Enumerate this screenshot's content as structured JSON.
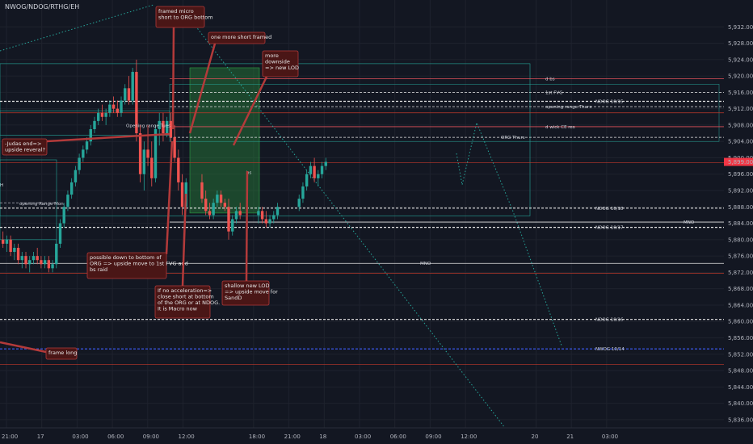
{
  "header": {
    "symbol": "NWOG/NDOG/RTHG/EH"
  },
  "chart_data": {
    "type": "candlestick",
    "title": "NWOG/NDOG/RTHG/EH",
    "y_range": [
      5834,
      5936
    ],
    "y_ticks": [
      5836,
      5840,
      5844,
      5848,
      5852,
      5856,
      5860,
      5864,
      5868,
      5872,
      5876,
      5880,
      5884,
      5888,
      5892,
      5896,
      5900,
      5904,
      5908,
      5912,
      5916,
      5920,
      5924,
      5928,
      5932
    ],
    "y_tick_labels": [
      "5,836.00",
      "5,840.00",
      "5,844.00",
      "5,848.00",
      "5,852.00",
      "5,856.00",
      "5,860.00",
      "5,864.00",
      "5,868.00",
      "5,872.00",
      "5,876.00",
      "5,880.00",
      "5,884.00",
      "5,888.00",
      "5,892.00",
      "5,896.00",
      "5,900.00",
      "5,904.00",
      "5,908.00",
      "5,912.00",
      "5,916.00",
      "5,920.00",
      "5,924.00",
      "5,928.00",
      "5,932.00"
    ],
    "x_labels": [
      "21:00",
      "17",
      "03:00",
      "06:00",
      "09:00",
      "12:00",
      "18:00",
      "21:00",
      "18",
      "03:00",
      "06:00",
      "09:00",
      "12:00",
      "20",
      "21",
      "03:00"
    ],
    "x_slots": [
      0,
      1,
      2,
      3,
      4,
      5,
      7,
      8,
      9,
      10,
      11,
      12,
      13,
      15,
      16,
      17
    ],
    "current_price": {
      "value": 5899.0,
      "label": "5,899.00",
      "color": "#f23645"
    },
    "colors": {
      "up": "#26a69a",
      "down": "#ef5350"
    },
    "candles": [
      [
        5880,
        5882,
        5878,
        5879
      ],
      [
        5879,
        5881,
        5877,
        5880
      ],
      [
        5880,
        5881,
        5876,
        5877
      ],
      [
        5877,
        5879,
        5875,
        5878
      ],
      [
        5878,
        5879,
        5874,
        5875
      ],
      [
        5875,
        5877,
        5873,
        5876
      ],
      [
        5876,
        5877,
        5873,
        5874
      ],
      [
        5874,
        5876,
        5872,
        5875
      ],
      [
        5875,
        5877,
        5874,
        5876
      ],
      [
        5876,
        5878,
        5874,
        5875
      ],
      [
        5875,
        5876,
        5873,
        5874
      ],
      [
        5874,
        5876,
        5873,
        5875
      ],
      [
        5875,
        5876,
        5872,
        5873
      ],
      [
        5873,
        5875,
        5872,
        5874
      ],
      [
        5874,
        5880,
        5873,
        5879
      ],
      [
        5879,
        5885,
        5878,
        5884
      ],
      [
        5884,
        5889,
        5883,
        5888
      ],
      [
        5888,
        5892,
        5887,
        5891
      ],
      [
        5891,
        5895,
        5890,
        5894
      ],
      [
        5894,
        5898,
        5893,
        5897
      ],
      [
        5897,
        5901,
        5896,
        5900
      ],
      [
        5900,
        5903,
        5899,
        5902
      ],
      [
        5902,
        5905,
        5901,
        5904
      ],
      [
        5904,
        5908,
        5903,
        5907
      ],
      [
        5907,
        5910,
        5906,
        5909
      ],
      [
        5909,
        5912,
        5908,
        5911
      ],
      [
        5911,
        5913,
        5909,
        5910
      ],
      [
        5910,
        5912,
        5908,
        5911
      ],
      [
        5911,
        5914,
        5910,
        5913
      ],
      [
        5913,
        5915,
        5911,
        5912
      ],
      [
        5912,
        5914,
        5910,
        5911
      ],
      [
        5911,
        5915,
        5910,
        5914
      ],
      [
        5914,
        5918,
        5913,
        5917
      ],
      [
        5917,
        5920,
        5913,
        5914
      ],
      [
        5914,
        5922,
        5913,
        5921
      ],
      [
        5921,
        5924,
        5904,
        5906
      ],
      [
        5906,
        5908,
        5894,
        5896
      ],
      [
        5896,
        5904,
        5892,
        5902
      ],
      [
        5902,
        5908,
        5898,
        5900
      ],
      [
        5900,
        5904,
        5893,
        5895
      ],
      [
        5895,
        5908,
        5894,
        5907
      ],
      [
        5907,
        5911,
        5903,
        5909
      ],
      [
        5909,
        5911,
        5904,
        5906
      ],
      [
        5906,
        5910,
        5905,
        5909
      ],
      [
        5909,
        5911,
        5904,
        5905
      ],
      [
        5905,
        5908,
        5899,
        5900
      ],
      [
        5900,
        5902,
        5892,
        5894
      ],
      [
        5894,
        5896,
        5886,
        5888
      ],
      [
        5888,
        5895,
        5887,
        5894
      ],
      [
        5894,
        5896,
        5889,
        5890
      ],
      [
        5890,
        5892,
        5886,
        5887
      ],
      [
        5887,
        5889,
        5885,
        5886
      ],
      [
        5886,
        5890,
        5885,
        5889
      ],
      [
        5889,
        5892,
        5888,
        5891
      ],
      [
        5891,
        5892,
        5888,
        5889
      ],
      [
        5889,
        5890,
        5887,
        5888
      ],
      [
        5888,
        5890,
        5880,
        5882
      ],
      [
        5882,
        5886,
        5881,
        5885
      ],
      [
        5885,
        5888,
        5884,
        5887
      ],
      [
        5887,
        5889,
        5885,
        5886
      ],
      [
        5886,
        5888,
        5884,
        5887
      ],
      [
        5887,
        5888,
        5884,
        5885
      ],
      [
        5885,
        5887,
        5883,
        5884
      ],
      [
        5884,
        5886,
        5883,
        5885
      ],
      [
        5885,
        5887,
        5884,
        5886
      ],
      [
        5886,
        5889,
        5885,
        5888
      ],
      [
        5888,
        5891,
        5887,
        5890
      ],
      [
        5890,
        5894,
        5889,
        5893
      ],
      [
        5893,
        5897,
        5892,
        5896
      ],
      [
        5896,
        5899,
        5895,
        5898
      ],
      [
        5898,
        5900,
        5894,
        5895
      ],
      [
        5895,
        5897,
        5893,
        5896
      ],
      [
        5896,
        5899,
        5895,
        5898
      ],
      [
        5898,
        5900,
        5897,
        5899
      ]
    ],
    "levels": [
      {
        "label": "d bs",
        "value": 5919.3,
        "color": "#e0505a"
      },
      {
        "label": "1st FVG",
        "value": 5916.0,
        "color": "#e6e6e6"
      },
      {
        "label": "NDOG 10/15",
        "value": 5913.8,
        "color": "#e6e6e6"
      },
      {
        "label": "opening range Thurs",
        "value": 5912.5,
        "color": "#e6e6e6"
      },
      {
        "label": "d wick CE res",
        "value": 5907.6,
        "color": "#e0505a"
      },
      {
        "label": "ORG Thurs",
        "value": 5905.0,
        "color": "#e6e6e6"
      },
      {
        "label": "NDOG 10/18",
        "value": 5887.7,
        "color": "#e6e6e6"
      },
      {
        "label": "MNO",
        "value": 5884.3,
        "color": "#e6e6e6"
      },
      {
        "label": "NDOG 10/17",
        "value": 5883.0,
        "color": "#e6e6e6"
      },
      {
        "label": "MNO",
        "value": 5874.2,
        "color": "#e6e6e6"
      },
      {
        "label": "NDOG 10/16",
        "value": 5860.5,
        "color": "#e6e6e6"
      },
      {
        "label": "NWOG 10/14",
        "value": 5853.3,
        "color": "#3f5fff"
      }
    ],
    "chart_labels": [
      "Opening range Tues",
      "opening Range Mon",
      "bs",
      "H"
    ],
    "annotations": [
      {
        "text": "framed micro short to ORG bottom"
      },
      {
        "text": "one more short framed"
      },
      {
        "text": "more downside => new LOD"
      },
      {
        "text": "-Judas end=> upside reveral?"
      },
      {
        "text": "possible down to bottom of ORG => upside move to 1st FVG and bs raid"
      },
      {
        "text": "If no acceleration=> close short at bottom of the ORG or at NDOG. It is Macro now"
      },
      {
        "text": "shallow new LOD => upside move for SandD"
      },
      {
        "text": "frame long"
      }
    ]
  }
}
